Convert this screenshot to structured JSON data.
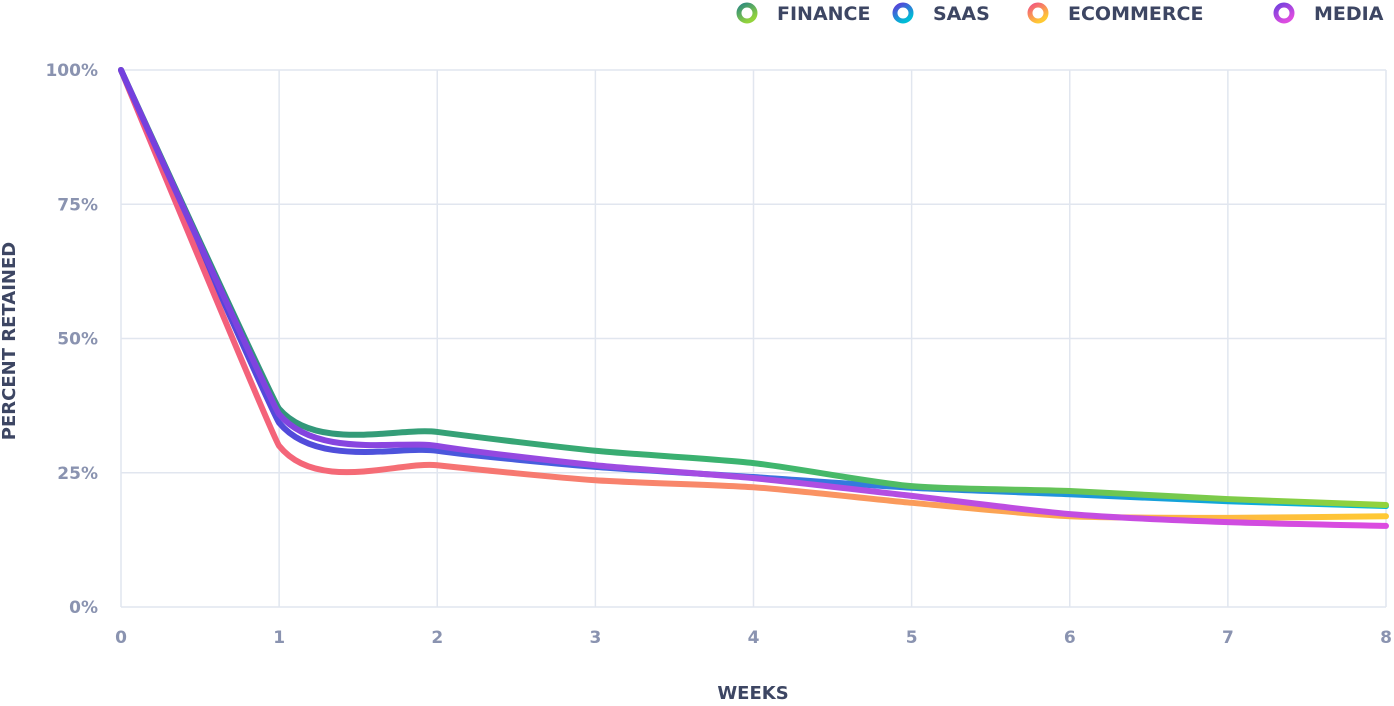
{
  "chart_data": {
    "type": "line",
    "xlabel": "WEEKS",
    "ylabel": "PERCENT RETAINED",
    "x": [
      0,
      1,
      2,
      3,
      4,
      5,
      6,
      7,
      8
    ],
    "x_tick_labels": [
      "0",
      "1",
      "2",
      "3",
      "4",
      "5",
      "6",
      "7",
      "8"
    ],
    "y_tick_labels": [
      "0%",
      "25%",
      "50%",
      "75%",
      "100%"
    ],
    "y_ticks": [
      0,
      25,
      50,
      75,
      100
    ],
    "xlim": [
      0,
      8
    ],
    "ylim": [
      0,
      100
    ],
    "grid": true,
    "legend_position": "top-right",
    "series": [
      {
        "name": "FINANCE",
        "values": [
          100,
          36.9,
          32.6,
          29.1,
          26.8,
          22.5,
          21.6,
          20.1,
          19.0
        ],
        "colors": [
          "#2e8b7e",
          "#3cb56f",
          "#93d33c"
        ]
      },
      {
        "name": "SAAS",
        "values": [
          100,
          34.3,
          29.1,
          26.1,
          24.2,
          22.2,
          21.0,
          19.7,
          18.8
        ],
        "colors": [
          "#5a3ed8",
          "#3d6ee0",
          "#00bcd6"
        ]
      },
      {
        "name": "ECOMMERCE",
        "values": [
          100,
          30.0,
          26.4,
          23.6,
          22.3,
          19.4,
          16.9,
          16.6,
          16.9
        ],
        "colors": [
          "#f2577f",
          "#f98d68",
          "#ffc933"
        ]
      },
      {
        "name": "MEDIA",
        "values": [
          100,
          35.9,
          30.0,
          26.4,
          24.0,
          20.7,
          17.3,
          15.8,
          15.1
        ],
        "colors": [
          "#7440de",
          "#a94ee2",
          "#dc4ce0"
        ]
      }
    ]
  }
}
